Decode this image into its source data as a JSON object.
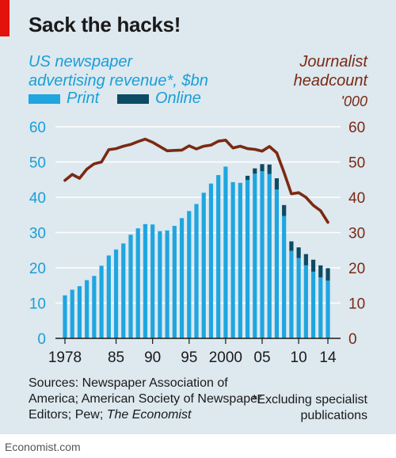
{
  "title": "Sack the hacks!",
  "left_axis_title_line1": "US newspaper",
  "left_axis_title_line2": "advertising revenue*, $bn",
  "right_axis_title_line1": "Journalist",
  "right_axis_title_line2": "headcount",
  "right_axis_unit": "'000",
  "legend": {
    "print": "Print",
    "online": "Online"
  },
  "sources_prefix": "Sources: Newspaper Association of America; American Society of Newspaper Editors; Pew; ",
  "sources_italic": "The Economist",
  "footnote_line1": "*Excluding specialist",
  "footnote_line2": "publications",
  "credit": "Economist.com",
  "colors": {
    "print": "#1fa6df",
    "online": "#0d4b63",
    "headcount": "#7a2a12",
    "background": "#dde8ef",
    "accent": "#e3120b"
  },
  "chart_data": {
    "type": "bar",
    "x": [
      1978,
      1979,
      1980,
      1981,
      1982,
      1983,
      1984,
      1985,
      1986,
      1987,
      1988,
      1989,
      1990,
      1991,
      1992,
      1993,
      1994,
      1995,
      1996,
      1997,
      1998,
      1999,
      2000,
      2001,
      2002,
      2003,
      2004,
      2005,
      2006,
      2007,
      2008,
      2009,
      2010,
      2011,
      2012,
      2013,
      2014
    ],
    "x_tick_labels": [
      {
        "x": 1978,
        "label": "1978"
      },
      {
        "x": 1985,
        "label": "85"
      },
      {
        "x": 1990,
        "label": "90"
      },
      {
        "x": 1995,
        "label": "95"
      },
      {
        "x": 2000,
        "label": "2000"
      },
      {
        "x": 2005,
        "label": "05"
      },
      {
        "x": 2010,
        "label": "10"
      },
      {
        "x": 2014,
        "label": "14"
      }
    ],
    "series": [
      {
        "name": "Print",
        "values": [
          12.2,
          13.8,
          14.8,
          16.5,
          17.7,
          20.6,
          23.5,
          25.2,
          26.9,
          29.4,
          31.2,
          32.4,
          32.3,
          30.4,
          30.6,
          31.9,
          34.1,
          36.1,
          38.1,
          41.3,
          43.9,
          46.3,
          48.7,
          44.3,
          44.1,
          44.9,
          46.7,
          47.4,
          46.6,
          42.2,
          34.7,
          24.8,
          22.8,
          20.7,
          18.9,
          17.3,
          16.4
        ]
      },
      {
        "name": "Online",
        "values": [
          0,
          0,
          0,
          0,
          0,
          0,
          0,
          0,
          0,
          0,
          0,
          0,
          0,
          0,
          0,
          0,
          0,
          0,
          0,
          0,
          0,
          0,
          0,
          0,
          0,
          1.2,
          1.5,
          2.0,
          2.7,
          3.2,
          3.1,
          2.7,
          3.0,
          3.2,
          3.4,
          3.4,
          3.5
        ]
      }
    ],
    "line_series": {
      "name": "Journalist headcount",
      "axis": "right",
      "x": [
        1978,
        1979,
        1980,
        1981,
        1982,
        1983,
        1984,
        1985,
        1986,
        1987,
        1988,
        1989,
        1990,
        1991,
        1992,
        1993,
        1994,
        1995,
        1996,
        1997,
        1998,
        1999,
        2000,
        2001,
        2002,
        2003,
        2004,
        2005,
        2006,
        2007,
        2008,
        2009,
        2010,
        2011,
        2012,
        2013,
        2014
      ],
      "values": [
        44.8,
        46.5,
        45.4,
        48.0,
        49.5,
        50.0,
        53.5,
        53.8,
        54.5,
        55.0,
        55.8,
        56.5,
        55.6,
        54.4,
        53.2,
        53.3,
        53.4,
        54.6,
        53.7,
        54.5,
        54.8,
        55.9,
        56.2,
        54.0,
        54.5,
        53.8,
        53.6,
        53.1,
        54.4,
        52.6,
        47.0,
        41.0,
        41.3,
        40.0,
        37.7,
        36.2,
        32.9
      ]
    },
    "left_axis": {
      "min": 0,
      "max": 60,
      "ticks": [
        0,
        10,
        20,
        30,
        40,
        50,
        60
      ]
    },
    "right_axis": {
      "min": 0,
      "max": 60,
      "ticks": [
        0,
        10,
        20,
        30,
        40,
        50,
        60
      ]
    },
    "grid": true,
    "legend_position": "top-left"
  }
}
